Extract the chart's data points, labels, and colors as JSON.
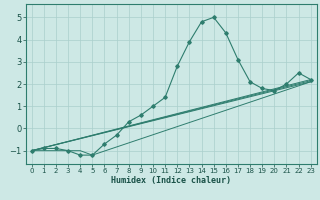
{
  "xlabel": "Humidex (Indice chaleur)",
  "background_color": "#cde8e5",
  "line_color": "#2e7d6e",
  "grid_color": "#aacfcc",
  "xlim": [
    -0.5,
    23.5
  ],
  "ylim": [
    -1.6,
    5.6
  ],
  "xticks": [
    0,
    1,
    2,
    3,
    4,
    5,
    6,
    7,
    8,
    9,
    10,
    11,
    12,
    13,
    14,
    15,
    16,
    17,
    18,
    19,
    20,
    21,
    22,
    23
  ],
  "yticks": [
    -1,
    0,
    1,
    2,
    3,
    4,
    5
  ],
  "main_x": [
    0,
    1,
    2,
    3,
    4,
    5,
    6,
    7,
    8,
    9,
    10,
    11,
    12,
    13,
    14,
    15,
    16,
    17,
    18,
    19,
    20,
    21,
    22,
    23
  ],
  "main_y": [
    -1.0,
    -0.9,
    -0.9,
    -1.0,
    -1.2,
    -1.2,
    -0.7,
    -0.3,
    0.3,
    0.6,
    1.0,
    1.4,
    2.8,
    3.9,
    4.8,
    5.0,
    4.3,
    3.1,
    2.1,
    1.8,
    1.7,
    2.0,
    2.5,
    2.2
  ],
  "linear_lines": [
    {
      "x": [
        0,
        23
      ],
      "y": [
        -1.0,
        2.1
      ]
    },
    {
      "x": [
        0,
        23
      ],
      "y": [
        -1.0,
        2.15
      ]
    },
    {
      "x": [
        0,
        23
      ],
      "y": [
        -1.0,
        2.2
      ]
    },
    {
      "x": [
        0,
        4,
        5,
        23
      ],
      "y": [
        -1.0,
        -1.0,
        -1.2,
        2.1
      ]
    }
  ]
}
